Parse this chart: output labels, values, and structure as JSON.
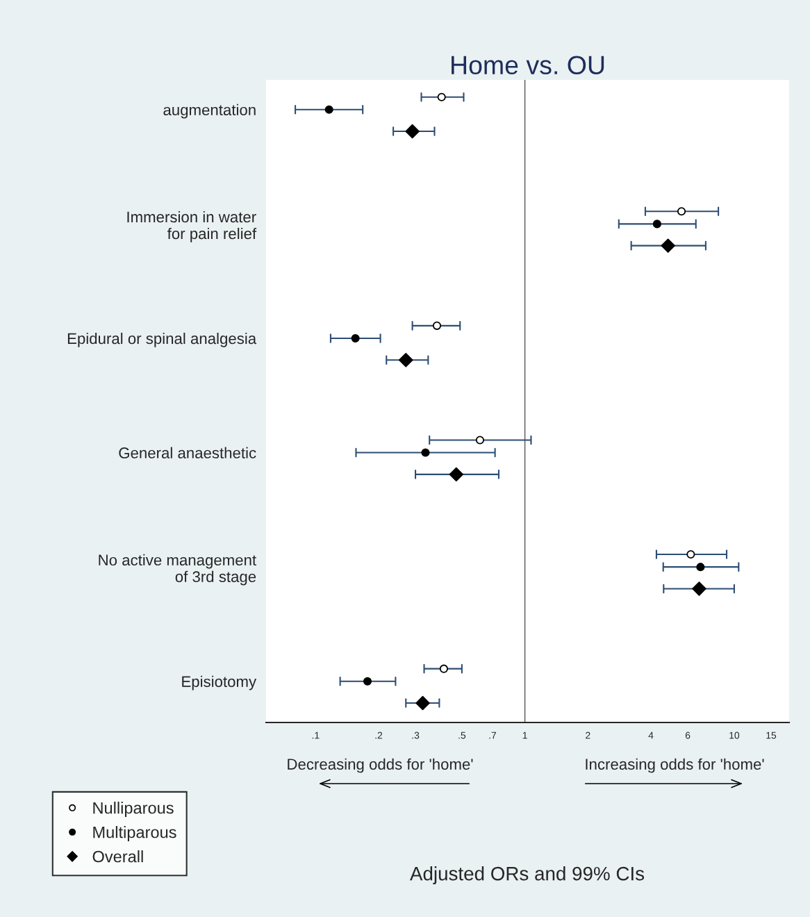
{
  "chart_data": {
    "type": "scatter",
    "orientation": "horizontal",
    "title": "Home vs. OU",
    "categories": [
      "augmentation",
      "Immersion in water\nfor pain relief",
      "Epidural or spinal analgesia",
      "General anaesthetic",
      "No active management\nof 3rd stage",
      "Episiotomy"
    ],
    "series": [
      {
        "name": "Nulliparous",
        "color": "#ffffff",
        "marker": "circle",
        "values": [
          0.4,
          5.6,
          0.38,
          0.61,
          6.2,
          0.41
        ],
        "errors": [
          [
            0.32,
            0.51
          ],
          [
            3.76,
            8.4
          ],
          [
            0.29,
            0.49
          ],
          [
            0.35,
            1.07
          ],
          [
            4.25,
            9.2
          ],
          [
            0.33,
            0.5
          ]
        ]
      },
      {
        "name": "Multiparous",
        "color": "#000000",
        "marker": "circle",
        "values": [
          0.116,
          4.28,
          0.155,
          0.335,
          6.9,
          0.177
        ],
        "errors": [
          [
            0.08,
            0.168
          ],
          [
            2.81,
            6.56
          ],
          [
            0.118,
            0.204
          ],
          [
            0.156,
            0.72
          ],
          [
            4.58,
            10.5
          ],
          [
            0.131,
            0.241
          ]
        ]
      },
      {
        "name": "Overall",
        "color": "#000000",
        "marker": "diamond",
        "values": [
          0.29,
          4.83,
          0.27,
          0.47,
          6.8,
          0.325
        ],
        "errors": [
          [
            0.235,
            0.37
          ],
          [
            3.22,
            7.31
          ],
          [
            0.218,
            0.345
          ],
          [
            0.3,
            0.75
          ],
          [
            4.6,
            10.0
          ],
          [
            0.27,
            0.39
          ]
        ]
      }
    ],
    "log": "x",
    "xlim": [
      0.058,
      18.3
    ],
    "xticks": [
      {
        "value": 0.1,
        "label": ".1"
      },
      {
        "value": 0.2,
        "label": ".2"
      },
      {
        "value": 0.3,
        "label": ".3"
      },
      {
        "value": 0.5,
        "label": ".5"
      },
      {
        "value": 0.7,
        "label": ".7"
      },
      1,
      2,
      4,
      6,
      10,
      15
    ],
    "ref_lines": [
      {
        "axis": "x",
        "value": 1,
        "color": "#555555"
      }
    ],
    "annotations": [
      "Decreasing odds for 'home'",
      "Increasing odds for 'home'",
      "Adjusted ORs and 99% CIs"
    ],
    "legend": "bottom left",
    "grid": false
  }
}
